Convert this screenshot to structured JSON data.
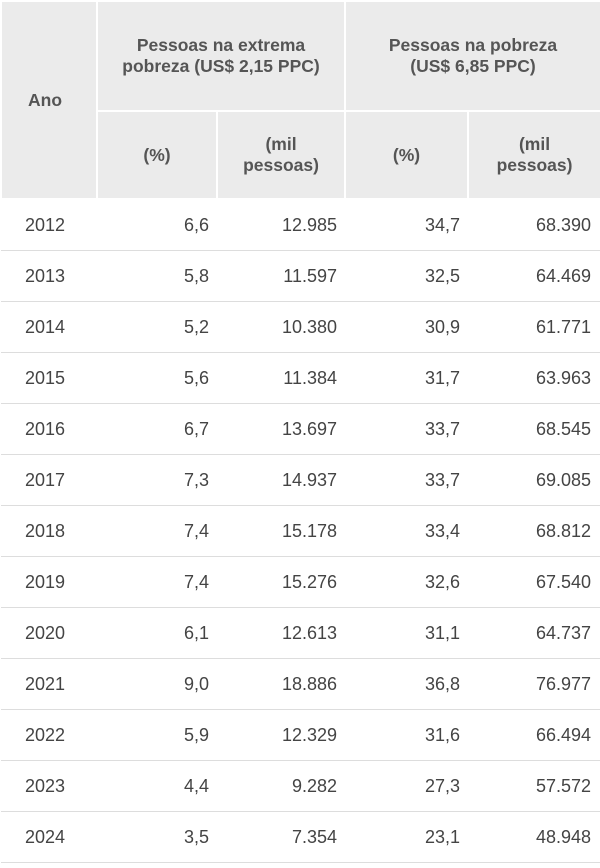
{
  "header": {
    "year": "Ano",
    "group_extreme": "Pessoas na extrema pobreza (US$ 2,15 PPC)",
    "group_poverty": "Pessoas na pobreza (US$ 6,85 PPC)",
    "sub": [
      "(%)",
      "(mil pessoas)",
      "(%)",
      "(mil pessoas)"
    ]
  },
  "rows": [
    [
      "2012",
      "6,6",
      "12.985",
      "34,7",
      "68.390"
    ],
    [
      "2013",
      "5,8",
      "11.597",
      "32,5",
      "64.469"
    ],
    [
      "2014",
      "5,2",
      "10.380",
      "30,9",
      "61.771"
    ],
    [
      "2015",
      "5,6",
      "11.384",
      "31,7",
      "63.963"
    ],
    [
      "2016",
      "6,7",
      "13.697",
      "33,7",
      "68.545"
    ],
    [
      "2017",
      "7,3",
      "14.937",
      "33,7",
      "69.085"
    ],
    [
      "2018",
      "7,4",
      "15.178",
      "33,4",
      "68.812"
    ],
    [
      "2019",
      "7,4",
      "15.276",
      "32,6",
      "67.540"
    ],
    [
      "2020",
      "6,1",
      "12.613",
      "31,1",
      "64.737"
    ],
    [
      "2021",
      "9,0",
      "18.886",
      "36,8",
      "76.977"
    ],
    [
      "2022",
      "5,9",
      "12.329",
      "31,6",
      "66.494"
    ],
    [
      "2023",
      "4,4",
      "9.282",
      "27,3",
      "57.572"
    ],
    [
      "2024",
      "3,5",
      "7.354",
      "23,1",
      "48.948"
    ]
  ]
}
